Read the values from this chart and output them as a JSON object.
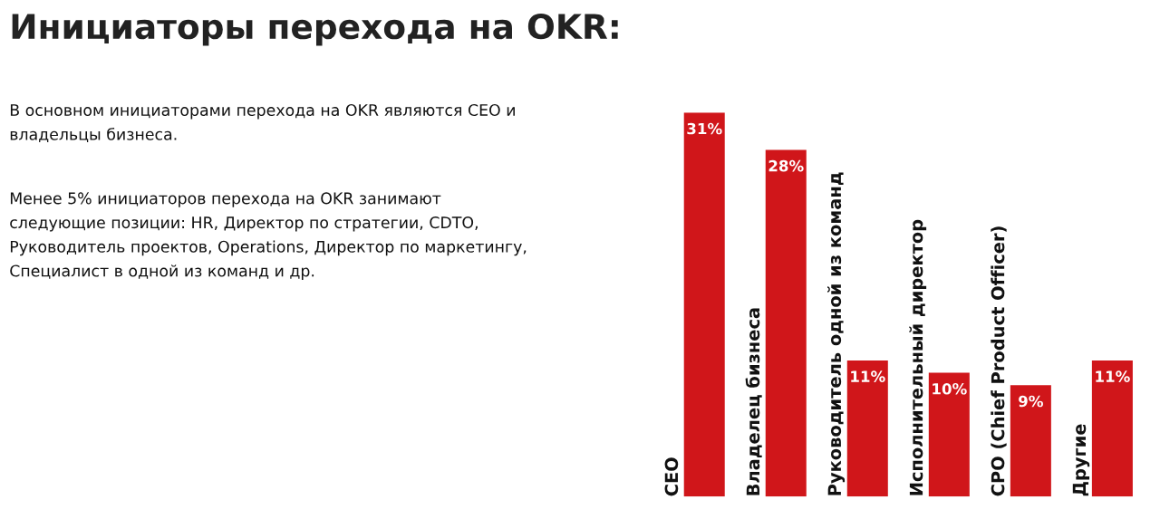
{
  "chart_data": {
    "type": "bar",
    "title": "Инициаторы перехода на OKR:",
    "annotations": [
      "В основном инициаторами перехода на OKR являются CEO и\nвладельцы бизнеса.",
      "Менее 5% инициаторов перехода на OKR занимают\nследующие позиции: HR, Директор по стратегии, CDTO,\nРуководитель проектов, Operations, Директор по маркетингу,\nСпециалист в одной из команд и др."
    ],
    "categories": [
      "CEO",
      "Владелец бизнеса",
      "Руководитель одной из команд",
      "Исполнительный директор",
      "CPO (Chief Product Officer)",
      "Другие"
    ],
    "values": [
      31,
      28,
      11,
      10,
      9,
      11
    ],
    "value_labels": [
      "31%",
      "28%",
      "11%",
      "10%",
      "9%",
      "11%"
    ],
    "color": "#d0161a"
  }
}
